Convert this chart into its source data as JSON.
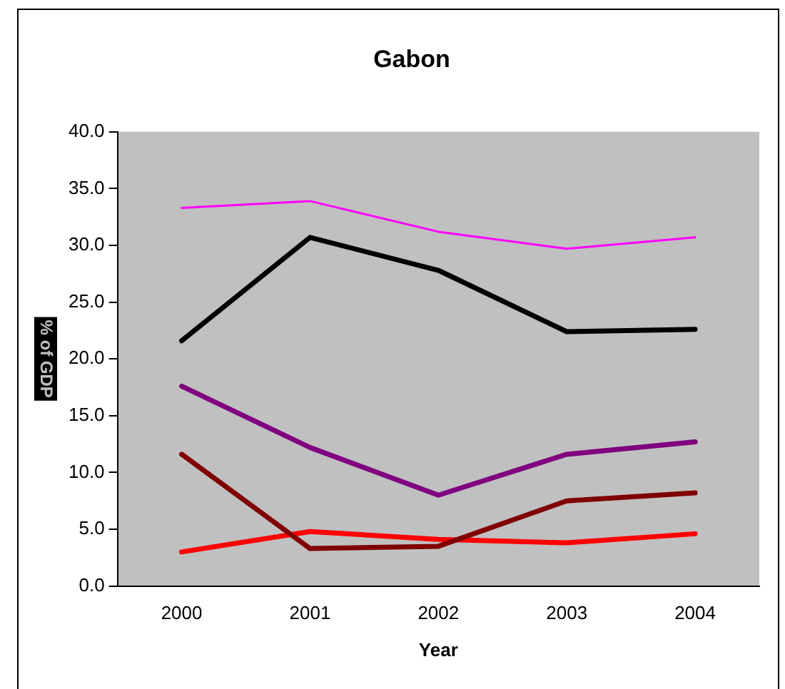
{
  "chart_data": {
    "type": "line",
    "title": "Gabon",
    "xlabel": "Year",
    "ylabel": "% of GDP",
    "categories": [
      "2000",
      "2001",
      "2002",
      "2003",
      "2004"
    ],
    "series": [
      {
        "color": "#ff00ff",
        "values": [
          33.3,
          33.9,
          31.2,
          29.7,
          30.7
        ]
      },
      {
        "color": "#000000",
        "values": [
          21.6,
          30.7,
          27.8,
          22.4,
          22.6
        ]
      },
      {
        "color": "#800080",
        "values": [
          17.6,
          12.2,
          8.0,
          11.6,
          12.7
        ]
      },
      {
        "color": "#800000",
        "values": [
          11.6,
          3.3,
          3.5,
          7.5,
          8.2
        ]
      },
      {
        "color": "#ff0000",
        "values": [
          3.0,
          4.8,
          4.1,
          3.8,
          4.6
        ]
      }
    ],
    "ylim": [
      0,
      40
    ],
    "yticks": [
      {
        "value": 0,
        "label": "0.0"
      },
      {
        "value": 5,
        "label": "5.0"
      },
      {
        "value": 10,
        "label": "10.0"
      },
      {
        "value": 15,
        "label": "15.0"
      },
      {
        "value": 20,
        "label": "20.0"
      },
      {
        "value": 25,
        "label": "25.0"
      },
      {
        "value": 30,
        "label": "30.0"
      },
      {
        "value": 35,
        "label": "35.0"
      },
      {
        "value": 40,
        "label": "40.0"
      }
    ],
    "grid": false,
    "legend": false,
    "marker": "none",
    "line_style": "solid"
  }
}
